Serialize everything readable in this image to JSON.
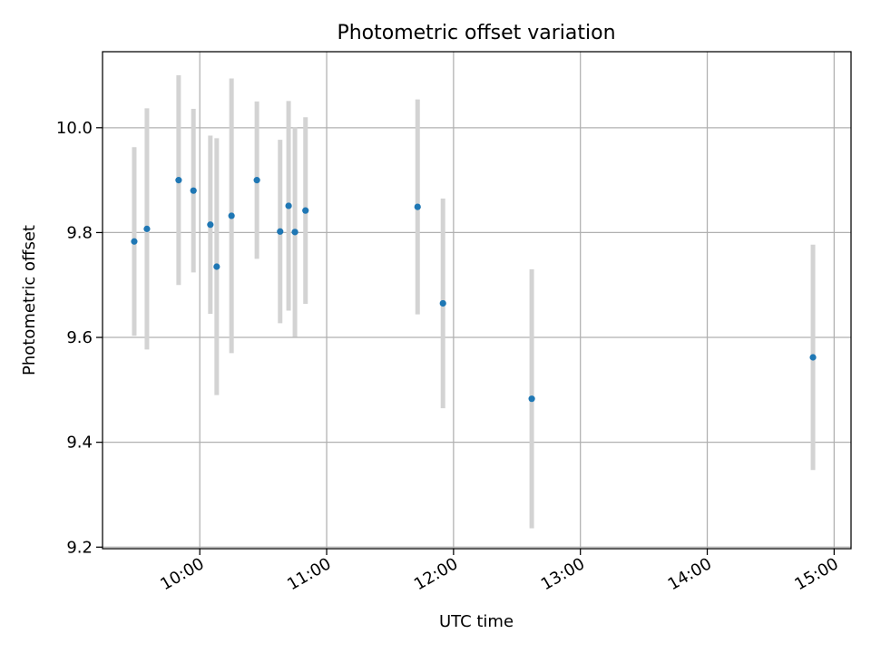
{
  "chart_data": {
    "type": "scatter",
    "title": "Photometric offset variation",
    "xlabel": "UTC time",
    "ylabel": "Photometric offset",
    "x_axis_kind": "time",
    "xlim": [
      "09:14",
      "15:08"
    ],
    "ylim": [
      9.197,
      10.145
    ],
    "grid": true,
    "x_ticks": [
      "10:00",
      "11:00",
      "12:00",
      "13:00",
      "14:00",
      "15:00"
    ],
    "y_ticks": [
      "9.2",
      "9.4",
      "9.6",
      "9.8",
      "10.0"
    ],
    "series": [
      {
        "marker_color": "#1f77b4",
        "errorbar_color": "#d3d3d3",
        "points": [
          {
            "x": "09:29",
            "y": 9.783,
            "yerr": 0.18
          },
          {
            "x": "09:35",
            "y": 9.807,
            "yerr": 0.23
          },
          {
            "x": "09:50",
            "y": 9.9,
            "yerr": 0.2
          },
          {
            "x": "09:57",
            "y": 9.88,
            "yerr": 0.156
          },
          {
            "x": "10:05",
            "y": 9.815,
            "yerr": 0.17
          },
          {
            "x": "10:08",
            "y": 9.735,
            "yerr": 0.245
          },
          {
            "x": "10:15",
            "y": 9.832,
            "yerr": 0.262
          },
          {
            "x": "10:27",
            "y": 9.9,
            "yerr": 0.15
          },
          {
            "x": "10:38",
            "y": 9.802,
            "yerr": 0.175
          },
          {
            "x": "10:42",
            "y": 9.851,
            "yerr": 0.2
          },
          {
            "x": "10:45",
            "y": 9.801,
            "yerr": 0.2
          },
          {
            "x": "10:50",
            "y": 9.842,
            "yerr": 0.178
          },
          {
            "x": "11:43",
            "y": 9.849,
            "yerr": 0.205
          },
          {
            "x": "11:55",
            "y": 9.665,
            "yerr": 0.2
          },
          {
            "x": "12:37",
            "y": 9.483,
            "yerr": 0.247
          },
          {
            "x": "14:50",
            "y": 9.562,
            "yerr": 0.215
          }
        ]
      }
    ]
  }
}
